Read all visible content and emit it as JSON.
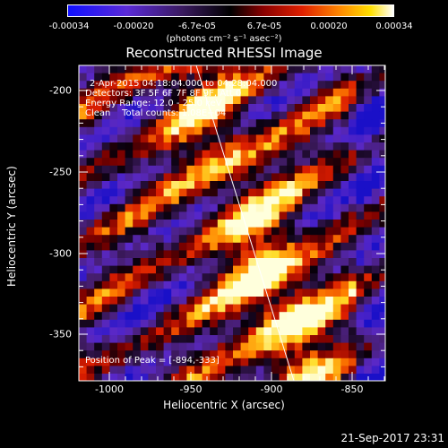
{
  "colorbar": {
    "ticks": [
      "-0.00034",
      "-0.00020",
      "-6.7e-05",
      "6.7e-05",
      "0.00020",
      "0.00034"
    ],
    "units": "(photons cm⁻² s⁻¹ asec⁻²)"
  },
  "title": "Reconstructed RHESSI Image",
  "annotations": {
    "line1": "2-Apr-2015 04:18:04.000 to 04:28:04.000",
    "line2": "Detectors: 3F 5F 6F 7F 8F 9F, Att 0",
    "line3": "Energy Range: 12.0 - 25.0 keV",
    "line4": "Clean    Total counts: 1.08E+04",
    "peak": "Position of Peak = [-894,-333]"
  },
  "axes": {
    "xlabel": "Heliocentric X (arcsec)",
    "ylabel": "Heliocentric Y (arcsec)",
    "xticks": [
      "-1000",
      "-950",
      "-900",
      "-850"
    ],
    "yticks": [
      "-200",
      "-250",
      "-300",
      "-350"
    ]
  },
  "datestamp": "21-Sep-2017 23:31"
}
